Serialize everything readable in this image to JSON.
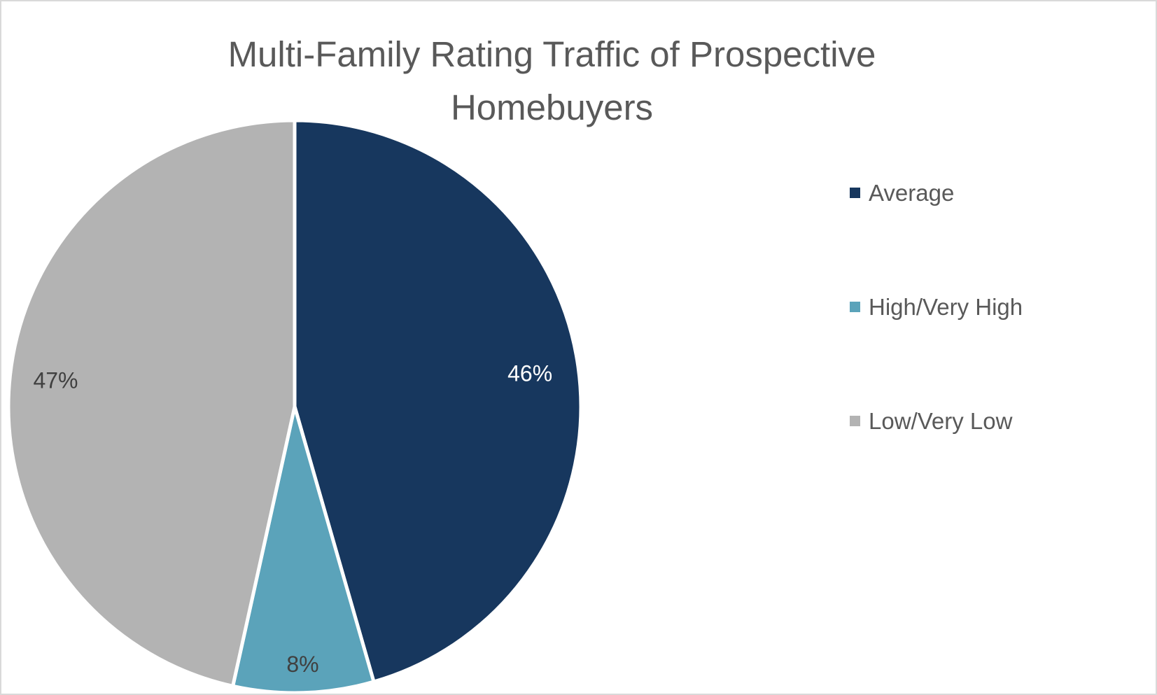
{
  "chart_data": {
    "type": "pie",
    "title": "Multi-Family Rating Traffic of Prospective Homebuyers",
    "title_lines": [
      "Multi-Family Rating Traffic of Prospective",
      "Homebuyers"
    ],
    "categories": [
      "Average",
      "High/Very High",
      "Low/Very Low"
    ],
    "values": [
      46,
      8,
      47
    ],
    "labels": [
      "46%",
      "8%",
      "47%"
    ],
    "colors": [
      "#17375e",
      "#5ba3ba",
      "#b3b3b3"
    ],
    "label_colors": [
      "#ffffff",
      "#404040",
      "#404040"
    ],
    "legend_position": "right",
    "start_angle_deg": 0,
    "direction": "clockwise"
  }
}
